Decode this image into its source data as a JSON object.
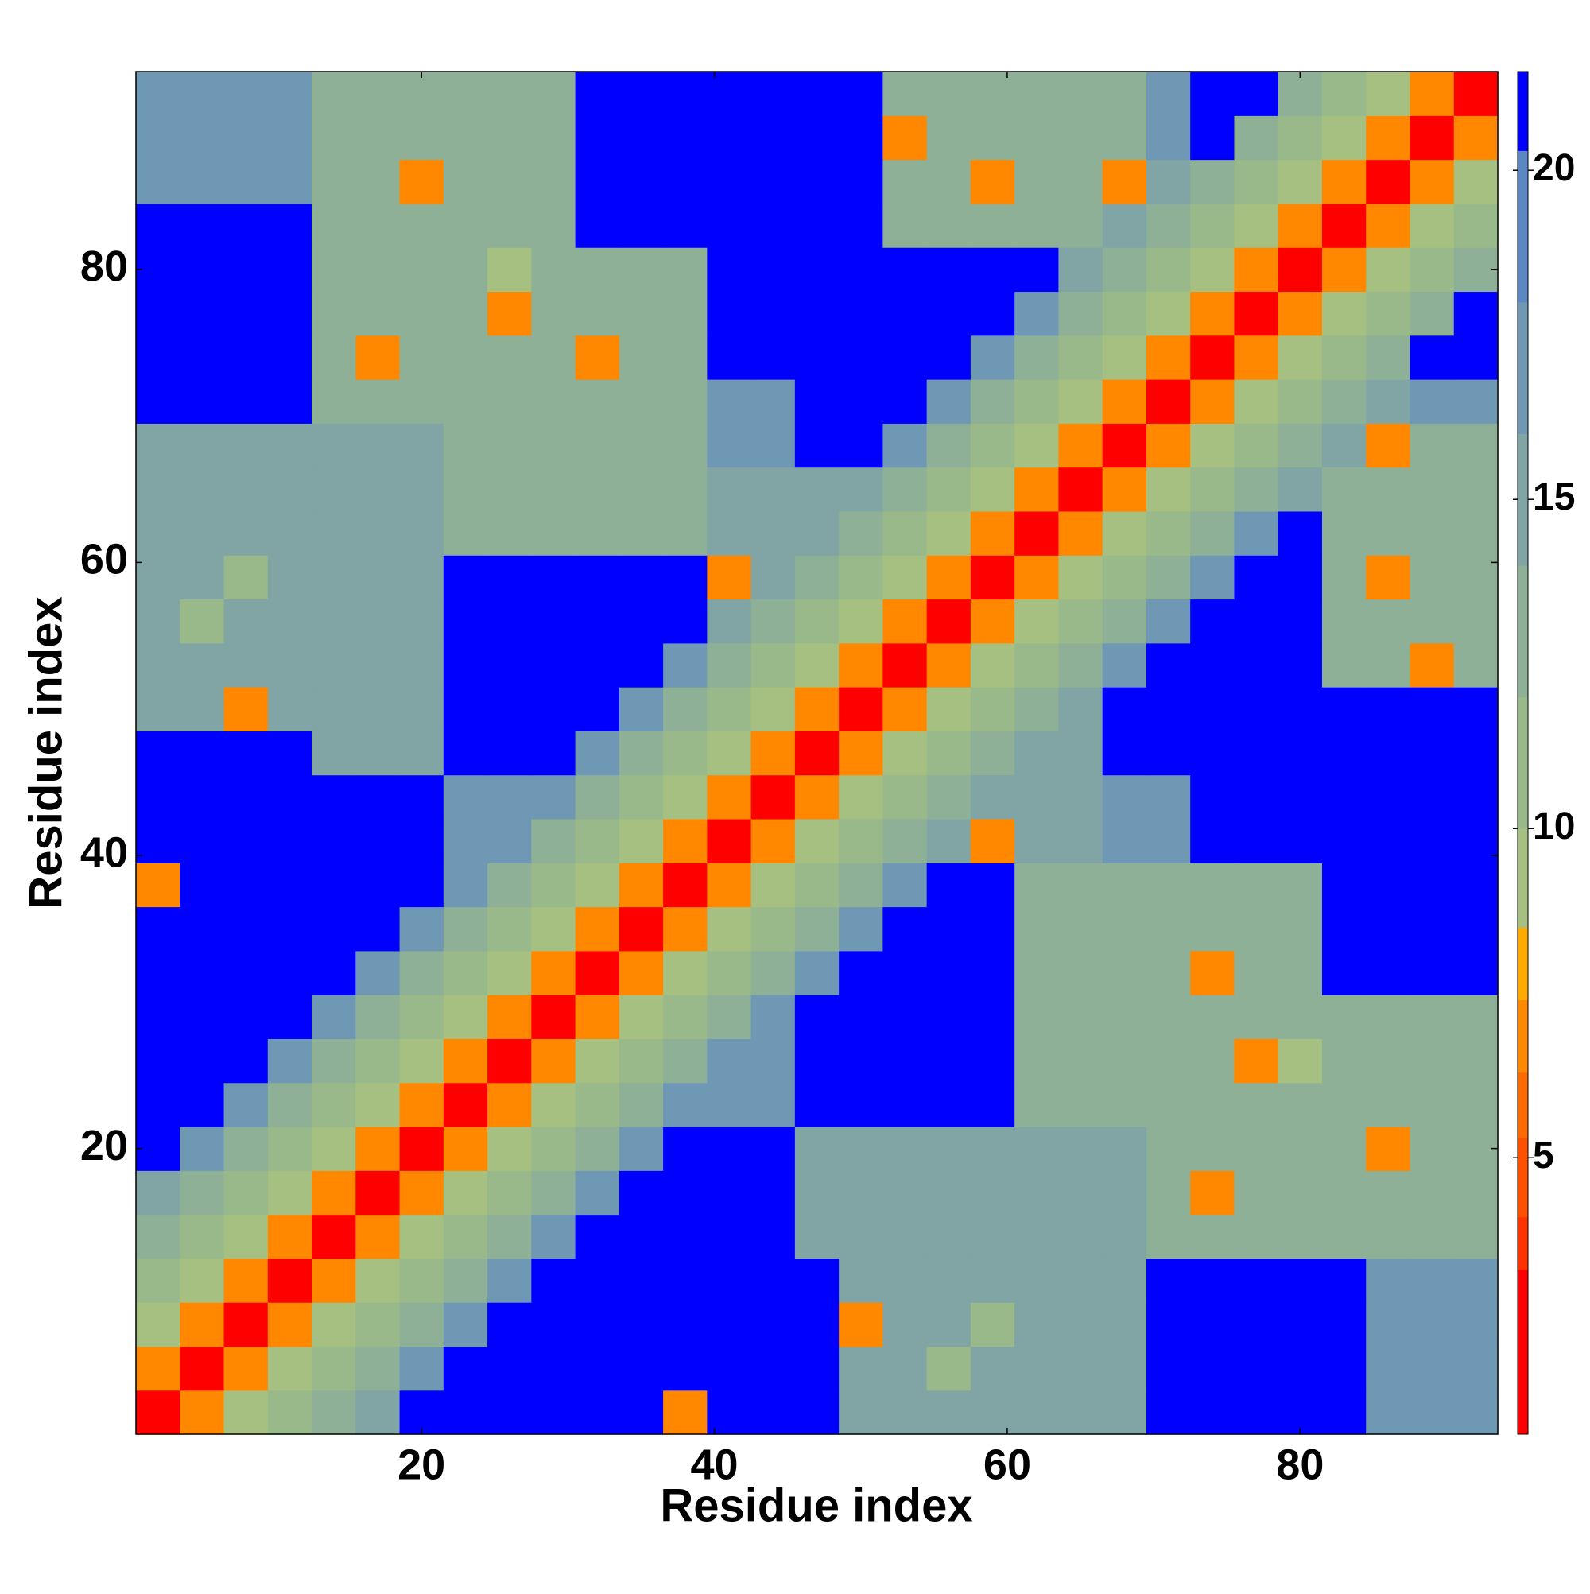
{
  "chart_data": {
    "type": "heatmap",
    "x_label": "Residue index",
    "y_label": "Residue index",
    "xlim": [
      0.5,
      93.5
    ],
    "ylim": [
      0.5,
      93.5
    ],
    "xticks": [
      20,
      40,
      60,
      80
    ],
    "yticks": [
      20,
      40,
      60,
      80
    ],
    "x_bins": [
      0.5,
      3.5,
      6.5,
      9.5,
      12.5,
      15.5,
      18.5,
      21.5,
      24.5,
      27.5,
      30.5,
      33.5,
      36.5,
      39.5,
      42.5,
      45.5,
      48.5,
      51.5,
      54.5,
      57.5,
      60.5,
      63.5,
      66.5,
      69.5,
      72.5,
      75.5,
      78.5,
      81.5,
      84.5,
      87.5,
      90.5,
      93.5
    ],
    "y_bins": [
      0.5,
      3.5,
      6.5,
      9.5,
      12.5,
      15.5,
      18.5,
      21.5,
      24.5,
      27.5,
      30.5,
      33.5,
      36.5,
      39.5,
      42.5,
      45.5,
      48.5,
      51.5,
      54.5,
      57.5,
      60.5,
      63.5,
      66.5,
      69.5,
      72.5,
      75.5,
      78.5,
      81.5,
      84.5,
      87.5,
      90.5,
      93.5
    ],
    "color_levels": [
      0.8,
      3.3,
      4.1,
      5.3,
      6.3,
      7.4,
      8.5,
      10,
      12,
      14,
      16,
      18,
      20.3,
      21.5
    ],
    "colors": [
      "#ff0000",
      "#ff3300",
      "#ff5000",
      "#ff6a00",
      "#ff8800",
      "#ffaa00",
      "#a5c080",
      "#9ab98a",
      "#8eb096",
      "#80a5a4",
      "#6e98b4",
      "#5b88c4",
      "#0000ff"
    ],
    "zticks": [
      5,
      10,
      15,
      20
    ],
    "z": [
      [
        2,
        7,
        9,
        11,
        13,
        15,
        21,
        21,
        21,
        21,
        21,
        21,
        7,
        21,
        21,
        21,
        15,
        15,
        15,
        15,
        15,
        15,
        15,
        21,
        21,
        21,
        21,
        21,
        17,
        17,
        17
      ],
      [
        7,
        2,
        7,
        9,
        11,
        13,
        17,
        21,
        21,
        21,
        21,
        21,
        21,
        21,
        21,
        21,
        15,
        15,
        11,
        15,
        15,
        15,
        15,
        21,
        21,
        21,
        21,
        21,
        17,
        17,
        17
      ],
      [
        9,
        7,
        2,
        7,
        9,
        11,
        13,
        17,
        21,
        21,
        21,
        21,
        21,
        21,
        21,
        21,
        7,
        15,
        15,
        11,
        15,
        15,
        15,
        21,
        21,
        21,
        21,
        21,
        17,
        17,
        17
      ],
      [
        11,
        9,
        7,
        2,
        7,
        9,
        11,
        13,
        17,
        21,
        21,
        21,
        21,
        21,
        21,
        21,
        15,
        15,
        15,
        15,
        15,
        15,
        15,
        21,
        21,
        21,
        21,
        21,
        17,
        17,
        17
      ],
      [
        13,
        11,
        9,
        7,
        2,
        7,
        9,
        11,
        13,
        17,
        21,
        21,
        21,
        21,
        21,
        15,
        15,
        15,
        15,
        15,
        15,
        15,
        15,
        13,
        13,
        13,
        13,
        13,
        13,
        13,
        13
      ],
      [
        15,
        13,
        11,
        9,
        7,
        2,
        7,
        9,
        11,
        13,
        17,
        21,
        21,
        21,
        21,
        15,
        15,
        15,
        15,
        15,
        15,
        15,
        15,
        13,
        7,
        13,
        13,
        13,
        13,
        13,
        13
      ],
      [
        21,
        17,
        13,
        11,
        9,
        7,
        2,
        7,
        9,
        11,
        13,
        17,
        21,
        21,
        21,
        15,
        15,
        15,
        15,
        15,
        15,
        15,
        15,
        13,
        13,
        13,
        13,
        13,
        7,
        13,
        13
      ],
      [
        21,
        21,
        17,
        13,
        11,
        9,
        7,
        2,
        7,
        9,
        11,
        13,
        17,
        17,
        17,
        21,
        21,
        21,
        21,
        21,
        13,
        13,
        13,
        13,
        13,
        13,
        13,
        13,
        13,
        13,
        13
      ],
      [
        21,
        21,
        21,
        17,
        13,
        11,
        9,
        7,
        2,
        7,
        9,
        11,
        13,
        17,
        17,
        21,
        21,
        21,
        21,
        21,
        13,
        13,
        13,
        13,
        13,
        7,
        9,
        13,
        13,
        13,
        13
      ],
      [
        21,
        21,
        21,
        21,
        17,
        13,
        11,
        9,
        7,
        2,
        7,
        9,
        11,
        13,
        17,
        21,
        21,
        21,
        21,
        21,
        13,
        13,
        13,
        13,
        13,
        13,
        13,
        13,
        13,
        13,
        13
      ],
      [
        21,
        21,
        21,
        21,
        21,
        17,
        13,
        11,
        9,
        7,
        2,
        7,
        9,
        11,
        13,
        17,
        21,
        21,
        21,
        21,
        13,
        13,
        13,
        13,
        7,
        13,
        13,
        21,
        21,
        21,
        21
      ],
      [
        21,
        21,
        21,
        21,
        21,
        21,
        17,
        13,
        11,
        9,
        7,
        2,
        7,
        9,
        11,
        13,
        17,
        21,
        21,
        21,
        13,
        13,
        13,
        13,
        13,
        13,
        13,
        21,
        21,
        21,
        21
      ],
      [
        7,
        21,
        21,
        21,
        21,
        21,
        21,
        17,
        13,
        11,
        9,
        7,
        2,
        7,
        9,
        11,
        13,
        17,
        21,
        21,
        13,
        13,
        13,
        13,
        13,
        13,
        13,
        21,
        21,
        21,
        21
      ],
      [
        21,
        21,
        21,
        21,
        21,
        21,
        21,
        17,
        17,
        13,
        11,
        9,
        7,
        2,
        7,
        9,
        11,
        13,
        15,
        7,
        15,
        15,
        17,
        17,
        21,
        21,
        21,
        21,
        21,
        21,
        21
      ],
      [
        21,
        21,
        21,
        21,
        21,
        21,
        21,
        17,
        17,
        17,
        13,
        11,
        9,
        7,
        2,
        7,
        9,
        11,
        13,
        15,
        15,
        15,
        17,
        17,
        21,
        21,
        21,
        21,
        21,
        21,
        21
      ],
      [
        21,
        21,
        21,
        21,
        15,
        15,
        15,
        21,
        21,
        21,
        17,
        13,
        11,
        9,
        7,
        2,
        7,
        9,
        11,
        13,
        15,
        15,
        21,
        21,
        21,
        21,
        21,
        21,
        21,
        21,
        21
      ],
      [
        15,
        15,
        7,
        15,
        15,
        15,
        15,
        21,
        21,
        21,
        21,
        17,
        13,
        11,
        9,
        7,
        2,
        7,
        9,
        11,
        13,
        15,
        21,
        21,
        21,
        21,
        21,
        21,
        21,
        21,
        21
      ],
      [
        15,
        15,
        15,
        15,
        15,
        15,
        15,
        21,
        21,
        21,
        21,
        21,
        17,
        13,
        11,
        9,
        7,
        2,
        7,
        9,
        11,
        13,
        17,
        21,
        21,
        21,
        21,
        13,
        13,
        7,
        13
      ],
      [
        15,
        11,
        15,
        15,
        15,
        15,
        15,
        21,
        21,
        21,
        21,
        21,
        21,
        15,
        13,
        11,
        9,
        7,
        2,
        7,
        9,
        11,
        13,
        17,
        21,
        21,
        21,
        13,
        13,
        13,
        13
      ],
      [
        15,
        15,
        11,
        15,
        15,
        15,
        15,
        21,
        21,
        21,
        21,
        21,
        21,
        7,
        15,
        13,
        11,
        9,
        7,
        2,
        7,
        9,
        11,
        13,
        17,
        21,
        21,
        13,
        7,
        13,
        13
      ],
      [
        15,
        15,
        15,
        15,
        15,
        15,
        15,
        13,
        13,
        13,
        13,
        13,
        13,
        15,
        15,
        15,
        13,
        11,
        9,
        7,
        2,
        7,
        9,
        11,
        13,
        17,
        21,
        13,
        13,
        13,
        13
      ],
      [
        15,
        15,
        15,
        15,
        15,
        15,
        15,
        13,
        13,
        13,
        13,
        13,
        13,
        15,
        15,
        15,
        15,
        13,
        11,
        9,
        7,
        2,
        7,
        9,
        11,
        13,
        15,
        13,
        13,
        13,
        13
      ],
      [
        15,
        15,
        15,
        15,
        15,
        15,
        15,
        13,
        13,
        13,
        13,
        13,
        13,
        17,
        17,
        21,
        21,
        17,
        13,
        11,
        9,
        7,
        2,
        7,
        9,
        11,
        13,
        15,
        7,
        13,
        13
      ],
      [
        21,
        21,
        21,
        21,
        13,
        13,
        13,
        13,
        13,
        13,
        13,
        13,
        13,
        17,
        17,
        21,
        21,
        21,
        17,
        13,
        11,
        9,
        7,
        2,
        7,
        9,
        11,
        13,
        15,
        17,
        17
      ],
      [
        21,
        21,
        21,
        21,
        13,
        7,
        13,
        13,
        13,
        13,
        7,
        13,
        13,
        21,
        21,
        21,
        21,
        21,
        21,
        17,
        13,
        11,
        9,
        7,
        2,
        7,
        9,
        11,
        13,
        21,
        21
      ],
      [
        21,
        21,
        21,
        21,
        13,
        13,
        13,
        13,
        7,
        13,
        13,
        13,
        13,
        21,
        21,
        21,
        21,
        21,
        21,
        21,
        17,
        13,
        11,
        9,
        7,
        2,
        7,
        9,
        11,
        13,
        21
      ],
      [
        21,
        21,
        21,
        21,
        13,
        13,
        13,
        13,
        9,
        13,
        13,
        13,
        13,
        21,
        21,
        21,
        21,
        21,
        21,
        21,
        21,
        15,
        13,
        11,
        9,
        7,
        2,
        7,
        9,
        11,
        13
      ],
      [
        21,
        21,
        21,
        21,
        13,
        13,
        13,
        13,
        13,
        13,
        21,
        21,
        21,
        21,
        21,
        21,
        21,
        13,
        13,
        13,
        13,
        13,
        15,
        13,
        11,
        9,
        7,
        2,
        7,
        9,
        11
      ],
      [
        17,
        17,
        17,
        17,
        13,
        13,
        7,
        13,
        13,
        13,
        21,
        21,
        21,
        21,
        21,
        21,
        21,
        13,
        13,
        7,
        13,
        13,
        7,
        15,
        13,
        11,
        9,
        7,
        2,
        7,
        9
      ],
      [
        17,
        17,
        17,
        17,
        13,
        13,
        13,
        13,
        13,
        13,
        21,
        21,
        21,
        21,
        21,
        21,
        21,
        7,
        13,
        13,
        13,
        13,
        13,
        17,
        21,
        13,
        11,
        9,
        7,
        2,
        7
      ],
      [
        17,
        17,
        17,
        17,
        13,
        13,
        13,
        13,
        13,
        13,
        21,
        21,
        21,
        21,
        21,
        21,
        21,
        13,
        13,
        13,
        13,
        13,
        13,
        17,
        21,
        21,
        13,
        11,
        9,
        7,
        2
      ]
    ]
  }
}
